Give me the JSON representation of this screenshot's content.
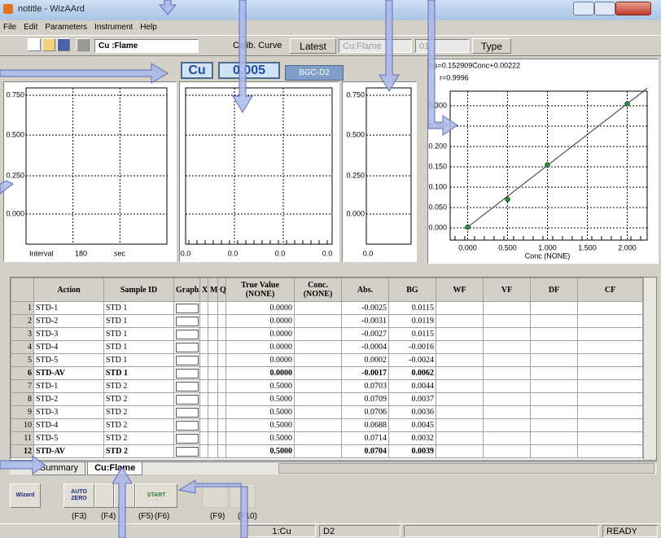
{
  "title_bar": {
    "title": "notitle - WizAArd"
  },
  "menu": [
    "File",
    "Edit",
    "Parameters",
    "Instrument",
    "Help"
  ],
  "toolbar": {
    "method": "Cu :Flame",
    "calib_curve_label": "Calib. Curve",
    "latest_button": "Latest",
    "curve_combo": "Cu:Flame",
    "number_combo": "01",
    "type_button": "Type"
  },
  "readout": {
    "element": "Cu",
    "value": "0.005",
    "mode": "BGC-D2"
  },
  "time_chart": {
    "yticks": [
      "0.750",
      "0.500",
      "0.250",
      "0.000"
    ],
    "x_label": "Interval",
    "interval": "180",
    "unit": "sec"
  },
  "peak_chart": {
    "xticks": [
      "0.0",
      "0.0",
      "0.0",
      "0.0"
    ]
  },
  "bar_chart": {
    "yticks": [
      "0.750",
      "0.500",
      "0.250",
      "0.000"
    ],
    "xticks": [
      "0.0"
    ]
  },
  "calibration_chart": {
    "equation": "bs=0.152909Conc+0.00222",
    "r": "r=0.9996",
    "x_label": "Conc (NONE)",
    "xlim": [
      -0.22,
      2.25
    ],
    "ylim": [
      -0.03,
      0.336
    ],
    "xticks": [
      {
        "value": 0,
        "label": "0.000"
      },
      {
        "value": 0.5,
        "label": "0.500"
      },
      {
        "value": 1,
        "label": "1.000"
      },
      {
        "value": 1.5,
        "label": "1.500"
      },
      {
        "value": 2,
        "label": "2.000"
      }
    ],
    "yticks": [
      {
        "value": 0,
        "label": "0.000"
      },
      {
        "value": 0.05,
        "label": "0.050"
      },
      {
        "value": 0.1,
        "label": "0.100"
      },
      {
        "value": 0.15,
        "label": "0.150"
      },
      {
        "value": 0.2,
        "label": "0.200"
      },
      {
        "value": 0.25,
        "label": "0.250"
      },
      {
        "value": 0.3,
        "label": "0.300"
      }
    ],
    "x": [
      0,
      0.5,
      1,
      2
    ],
    "y": [
      0.002,
      0.07,
      0.155,
      0.305
    ],
    "color": "#2e8b3a"
  },
  "table": {
    "headers": [
      "Action",
      "Sample ID",
      "Graph",
      "X",
      "M",
      "Q",
      "True Value (NONE)",
      "Conc. (NONE)",
      "Abs.",
      "BG",
      "WF",
      "VF",
      "DF",
      "CF"
    ],
    "rows": [
      {
        "n": "1",
        "action": "STD-1",
        "sample": "STD 1",
        "true_value": "0.0000",
        "abs": "-0.0025",
        "bg": "0.0115",
        "bold": false
      },
      {
        "n": "2",
        "action": "STD-2",
        "sample": "STD 1",
        "true_value": "0.0000",
        "abs": "-0.0031",
        "bg": "0.0119",
        "bold": false
      },
      {
        "n": "3",
        "action": "STD-3",
        "sample": "STD 1",
        "true_value": "0.0000",
        "abs": "-0.0027",
        "bg": "0.0115",
        "bold": false
      },
      {
        "n": "4",
        "action": "STD-4",
        "sample": "STD 1",
        "true_value": "0.0000",
        "abs": "-0.0004",
        "bg": "-0.0016",
        "bold": false
      },
      {
        "n": "5",
        "action": "STD-5",
        "sample": "STD 1",
        "true_value": "0.0000",
        "abs": "0.0002",
        "bg": "-0.0024",
        "bold": false
      },
      {
        "n": "6",
        "action": "STD-AV",
        "sample": "STD 1",
        "true_value": "0.0000",
        "abs": "-0.0017",
        "bg": "0.0062",
        "bold": true
      },
      {
        "n": "7",
        "action": "STD-1",
        "sample": "STD 2",
        "true_value": "0.5000",
        "abs": "0.0703",
        "bg": "0.0044",
        "bold": false
      },
      {
        "n": "8",
        "action": "STD-2",
        "sample": "STD 2",
        "true_value": "0.5000",
        "abs": "0.0709",
        "bg": "0.0037",
        "bold": false
      },
      {
        "n": "9",
        "action": "STD-3",
        "sample": "STD 2",
        "true_value": "0.5000",
        "abs": "0.0706",
        "bg": "0.0036",
        "bold": false
      },
      {
        "n": "10",
        "action": "STD-4",
        "sample": "STD 2",
        "true_value": "0.5000",
        "abs": "0.0688",
        "bg": "0.0045",
        "bold": false
      },
      {
        "n": "11",
        "action": "STD-5",
        "sample": "STD 2",
        "true_value": "0.5000",
        "abs": "0.0714",
        "bg": "0.0032",
        "bold": false
      },
      {
        "n": "12",
        "action": "STD-AV",
        "sample": "STD 2",
        "true_value": "0.5000",
        "abs": "0.0704",
        "bg": "0.0039",
        "bold": true
      }
    ]
  },
  "tabs": [
    "Summary",
    "Cu:Flame"
  ],
  "bottom_toolbar": {
    "buttons": [
      "Wizard",
      "AUTO ZERO",
      "START"
    ],
    "function_keys": [
      "(F3)",
      "(F4)",
      "(F5)",
      "(F6)",
      "(F9)",
      "(F10)"
    ]
  },
  "status_bar": {
    "element": "1:Cu",
    "mode": "D2",
    "state": "READY"
  }
}
